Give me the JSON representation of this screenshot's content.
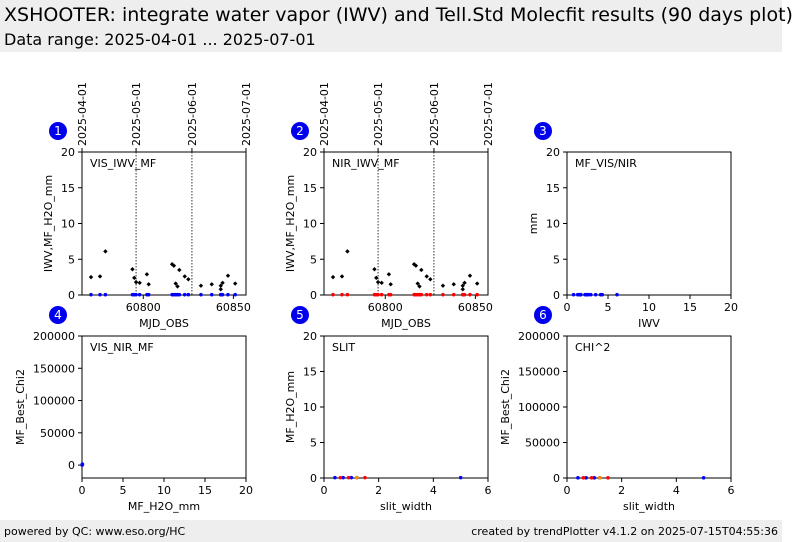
{
  "header": {
    "title": "XSHOOTER: integrate water vapor (IWV) and Tell.Std Molecfit results (90 days plot)",
    "subtitle": "Data range: 2025-04-01 ... 2025-07-01"
  },
  "footer": {
    "left": "powered by QC: www.eso.org/HC",
    "right": "created by trendPlotter v4.1.2 on 2025-07-15T04:55:36"
  },
  "colors": {
    "black": "#000000",
    "red": "#ff0000",
    "blue": "#0000ff",
    "orange": "#ff8c00",
    "badge": "#0000ee"
  },
  "chart_data": [
    {
      "panel": "1",
      "type": "scatter",
      "label": "VIS_IWV_MF",
      "xlabel": "MJD_OBS",
      "ylabel": "IWV,MF_H2O_mm",
      "xlim": [
        60766,
        60857
      ],
      "ylim": [
        0,
        20
      ],
      "xticks": [
        60800,
        60850
      ],
      "yticks": [
        0,
        5,
        10,
        15,
        20
      ],
      "date_marks": [
        {
          "x": 60766,
          "label": "2025-04-01"
        },
        {
          "x": 60796,
          "label": "2025-05-01"
        },
        {
          "x": 60827,
          "label": "2025-06-01"
        },
        {
          "x": 60857,
          "label": "2025-07-01"
        }
      ],
      "series": [
        {
          "color": "#000000",
          "marker": "diamond",
          "x": [
            60771,
            60776,
            60779,
            60794,
            60795,
            60796,
            60798,
            60802,
            60803,
            60816,
            60817,
            60818,
            60819,
            60820,
            60823,
            60825,
            60832,
            60838,
            60843,
            60843,
            60844,
            60847,
            60851
          ],
          "y": [
            2.5,
            2.6,
            6.1,
            3.6,
            2.4,
            1.8,
            1.7,
            2.9,
            1.5,
            4.3,
            4.1,
            1.6,
            1.2,
            3.5,
            2.6,
            2.2,
            1.3,
            1.5,
            1.3,
            0.8,
            1.7,
            2.7,
            1.6
          ]
        },
        {
          "color": "#0000ff",
          "marker": "circle",
          "x": [
            60771,
            60776,
            60779,
            60794,
            60795,
            60796,
            60798,
            60802,
            60803,
            60816,
            60817,
            60818,
            60819,
            60820,
            60823,
            60825,
            60832,
            60838,
            60843,
            60843,
            60844,
            60847,
            60851
          ],
          "y": [
            0.05,
            0.05,
            0.05,
            0.05,
            0.05,
            0.05,
            0.05,
            0.05,
            0.05,
            0.05,
            0.05,
            0.05,
            0.05,
            0.05,
            0.05,
            0.05,
            0.05,
            0.05,
            0.05,
            0.05,
            0.05,
            0.05,
            0.05
          ]
        }
      ]
    },
    {
      "panel": "2",
      "type": "scatter",
      "label": "NIR_IWV_MF",
      "xlabel": "MJD_OBS",
      "ylabel": "IWV,MF_H2O_mm",
      "xlim": [
        60766,
        60857
      ],
      "ylim": [
        0,
        20
      ],
      "xticks": [
        60800,
        60850
      ],
      "yticks": [
        0,
        5,
        10,
        15,
        20
      ],
      "date_marks": [
        {
          "x": 60766,
          "label": "2025-04-01"
        },
        {
          "x": 60796,
          "label": "2025-05-01"
        },
        {
          "x": 60827,
          "label": "2025-06-01"
        },
        {
          "x": 60857,
          "label": "2025-07-01"
        }
      ],
      "series": [
        {
          "color": "#000000",
          "marker": "diamond",
          "x": [
            60771,
            60776,
            60779,
            60794,
            60795,
            60796,
            60798,
            60802,
            60803,
            60816,
            60817,
            60818,
            60819,
            60820,
            60823,
            60825,
            60832,
            60838,
            60843,
            60843,
            60844,
            60847,
            60851
          ],
          "y": [
            2.5,
            2.6,
            6.1,
            3.6,
            2.4,
            1.8,
            1.7,
            2.9,
            1.5,
            4.3,
            4.1,
            1.6,
            1.2,
            3.5,
            2.6,
            2.2,
            1.3,
            1.5,
            1.3,
            0.8,
            1.7,
            2.7,
            1.6
          ]
        },
        {
          "color": "#ff0000",
          "marker": "circle",
          "x": [
            60771,
            60776,
            60779,
            60794,
            60795,
            60796,
            60798,
            60802,
            60803,
            60816,
            60817,
            60818,
            60819,
            60820,
            60823,
            60825,
            60832,
            60838,
            60843,
            60843,
            60844,
            60847,
            60851
          ],
          "y": [
            0.05,
            0.05,
            0.05,
            0.05,
            0.05,
            0.05,
            0.05,
            0.05,
            0.05,
            0.05,
            0.05,
            0.05,
            0.05,
            0.05,
            0.05,
            0.05,
            0.05,
            0.05,
            0.05,
            0.05,
            0.05,
            0.05,
            0.05
          ]
        }
      ]
    },
    {
      "panel": "3",
      "type": "scatter",
      "label": "MF_VIS/NIR",
      "xlabel": "IWV",
      "ylabel": "mm",
      "xlim": [
        0,
        20
      ],
      "ylim": [
        0,
        20
      ],
      "xticks": [
        0,
        5,
        10,
        15,
        20
      ],
      "yticks": [
        0,
        5,
        10,
        15,
        20
      ],
      "series": [
        {
          "color": "#0000ff",
          "marker": "circle",
          "x": [
            0.8,
            1.3,
            1.5,
            1.6,
            1.7,
            2.2,
            2.4,
            2.5,
            2.6,
            2.9,
            3.5,
            4.1,
            4.3,
            6.1
          ],
          "y": [
            0.05,
            0.05,
            0.05,
            0.05,
            0.05,
            0.05,
            0.05,
            0.05,
            0.05,
            0.05,
            0.05,
            0.05,
            0.05,
            0.05
          ]
        }
      ]
    },
    {
      "panel": "4",
      "type": "scatter",
      "label": "VIS_NIR_MF",
      "xlabel": "MF_H2O_mm",
      "ylabel": "MF_Best_Chi2",
      "xlim": [
        0,
        20
      ],
      "ylim": [
        -20000,
        200000
      ],
      "xticks": [
        0,
        5,
        10,
        15,
        20
      ],
      "yticks": [
        0,
        50000,
        100000,
        150000,
        200000
      ],
      "series": [
        {
          "color": "#0000ff",
          "marker": "circle",
          "x": [
            0.02,
            0.03,
            0.05
          ],
          "y": [
            200,
            800,
            1500
          ]
        }
      ]
    },
    {
      "panel": "5",
      "type": "scatter",
      "label": "SLIT",
      "xlabel": "slit_width",
      "ylabel": "MF_H2O_mm",
      "xlim": [
        0,
        6
      ],
      "ylim": [
        0,
        20
      ],
      "xticks": [
        0,
        2,
        4,
        6
      ],
      "yticks": [
        0,
        5,
        10,
        15,
        20
      ],
      "series": [
        {
          "color": "#0000ff",
          "marker": "circle",
          "x": [
            0.4,
            0.7,
            1.0,
            1.2,
            5.0
          ],
          "y": [
            0.05,
            0.05,
            0.05,
            0.05,
            0.05
          ]
        },
        {
          "color": "#ff0000",
          "marker": "circle",
          "x": [
            0.6,
            0.9,
            1.5
          ],
          "y": [
            0.05,
            0.05,
            0.05
          ]
        },
        {
          "color": "#ff8c00",
          "marker": "circle",
          "x": [
            1.2
          ],
          "y": [
            0.05
          ]
        }
      ]
    },
    {
      "panel": "6",
      "type": "scatter",
      "label": "CHI^2",
      "xlabel": "slit_width",
      "ylabel": "MF_Best_Chi2",
      "xlim": [
        0,
        6
      ],
      "ylim": [
        0,
        200000
      ],
      "xticks": [
        0,
        2,
        4,
        6
      ],
      "yticks": [
        0,
        50000,
        100000,
        150000,
        200000
      ],
      "series": [
        {
          "color": "#0000ff",
          "marker": "circle",
          "x": [
            0.4,
            0.7,
            1.0,
            1.2,
            5.0
          ],
          "y": [
            300,
            300,
            300,
            300,
            300
          ]
        },
        {
          "color": "#ff0000",
          "marker": "circle",
          "x": [
            0.6,
            0.9,
            1.5
          ],
          "y": [
            300,
            300,
            300
          ]
        },
        {
          "color": "#ff8c00",
          "marker": "circle",
          "x": [
            1.2
          ],
          "y": [
            300
          ]
        }
      ]
    }
  ]
}
